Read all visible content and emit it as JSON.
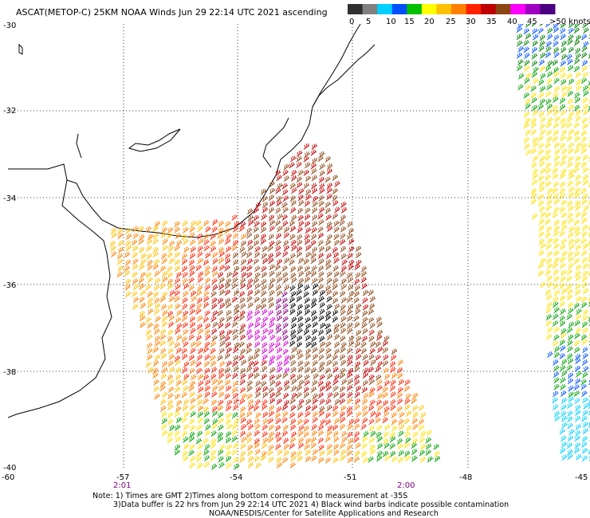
{
  "title": "ASCAT(METOP-C) 25KM NOAA Winds Jun 29 22:14 UTC 2021 ascending",
  "legend": {
    "colors": [
      "#303030",
      "#808080",
      "#00d0ff",
      "#0050ff",
      "#00c000",
      "#ffff00",
      "#ffc000",
      "#ff8000",
      "#ff2000",
      "#c00000",
      "#8b4513",
      "#ff00ff",
      "#a000c0",
      "#4b0082"
    ],
    "labels": [
      "0",
      "5",
      "10",
      "15",
      "20",
      "25",
      "30",
      "35",
      "40",
      "45",
      ">50 knots"
    ]
  },
  "lat_labels": [
    "-30",
    "-32",
    "-34",
    "-36",
    "-38",
    "-40"
  ],
  "lon_labels": [
    "-60",
    "-57",
    "-54",
    "-51",
    "-48",
    "-45"
  ],
  "time_labels": [
    "2:01",
    "2:00"
  ],
  "notes": {
    "line1": "Note: 1) Times are GMT 2)Times along bottom correspond to measurement at -35S",
    "line2": "3)Data buffer is 22 hrs from Jun 29 22:14 UTC 2021 4) Black wind barbs indicate possible contamination",
    "line3": "NOAA/NESDIS/Center for Satellite Applications and Research"
  }
}
